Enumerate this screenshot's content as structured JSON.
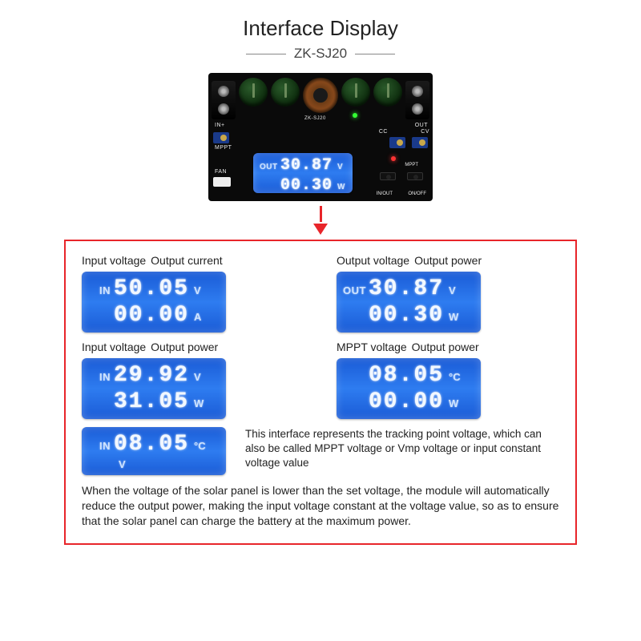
{
  "header": {
    "title": "Interface Display",
    "model": "ZK-SJ20"
  },
  "pcb": {
    "labels": {
      "in": "IN+",
      "out": "OUT",
      "mppt": "MPPT",
      "fan": "FAN",
      "cc": "CC",
      "cv": "CV",
      "model": "ZK-SJ20",
      "btn_mppt": "MPPT",
      "btn1": "IN/OUT",
      "btn2": "ON/OFF"
    },
    "lcd": {
      "line1_prefix": "OUT",
      "line1_value": "30.87",
      "line1_unit": "V",
      "line2_prefix": "",
      "line2_value": "00.30",
      "line2_unit": "W"
    }
  },
  "colors": {
    "accent_red": "#e8252a",
    "lcd_bg": "#2e7cf0",
    "lcd_text": "#f2f8ff"
  },
  "rows": [
    {
      "left": {
        "label_a": "Input voltage",
        "label_b": "Output current",
        "lcd": {
          "line1_prefix": "IN",
          "line1_value": "50.05",
          "line1_unit": "V",
          "line2_prefix": "",
          "line2_value": "00.00",
          "line2_unit": "A"
        }
      },
      "right": {
        "label_a": "Output voltage",
        "label_b": "Output power",
        "lcd": {
          "line1_prefix": "OUT",
          "line1_value": "30.87",
          "line1_unit": "V",
          "line2_prefix": "",
          "line2_value": "00.30",
          "line2_unit": "W"
        }
      }
    },
    {
      "left": {
        "label_a": "Input voltage",
        "label_b": "Output power",
        "lcd": {
          "line1_prefix": "IN",
          "line1_value": "29.92",
          "line1_unit": "V",
          "line2_prefix": "",
          "line2_value": "31.05",
          "line2_unit": "W"
        }
      },
      "right": {
        "label_a": "MPPT voltage",
        "label_b": "Output power",
        "lcd": {
          "line1_prefix": "",
          "line1_value": "08.05",
          "line1_unit": "°C",
          "line2_prefix": "",
          "line2_value": "00.00",
          "line2_unit": "W"
        }
      }
    }
  ],
  "extra_lcd": {
    "line1_prefix": "IN",
    "line1_value": "08.05",
    "line1_unit": "°C",
    "line2_prefix": "",
    "line2_value": "",
    "line2_unit": "V"
  },
  "note_text": "This interface represents the tracking point voltage, which can also be called MPPT voltage or Vmp voltage or input constant voltage value",
  "footer_text": "When the voltage of the solar panel is lower than the set voltage, the module will automatically reduce the output power, making the input voltage constant at the voltage value, so as to ensure that the solar panel can charge the battery at the maximum power."
}
